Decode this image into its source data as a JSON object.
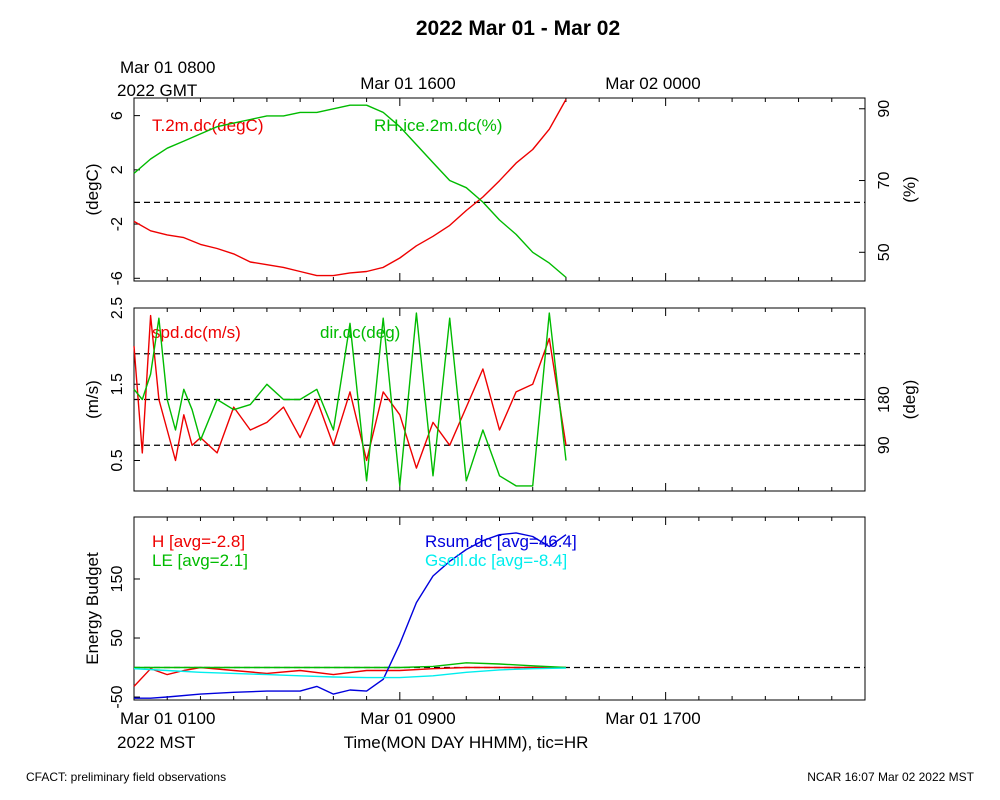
{
  "page": {
    "title": "2022 Mar 01 - Mar 02",
    "top_time_labels": [
      "Mar 01 0800",
      "Mar 01 1600",
      "Mar 02 0000"
    ],
    "top_time_sublabel": "2022 GMT",
    "bottom_time_labels": [
      "Mar 01 0100",
      "Mar 01 0900",
      "Mar 01 1700"
    ],
    "bottom_time_sublabel": "2022 MST",
    "xlabel": "Time(MON DAY HHMM), tic=HR",
    "footer_left": "CFACT: preliminary field observations",
    "footer_right": "NCAR 16:07 Mar 02 2022 MST"
  },
  "colors": {
    "red": "#ee0000",
    "green": "#00bb00",
    "blue": "#0000dd",
    "cyan": "#00eeee",
    "black": "#000000"
  },
  "chart_data": [
    {
      "type": "line",
      "panel": "temperature-humidity",
      "ylabel_left": "(degC)",
      "ylabel_right": "(%)",
      "ylim_left": [
        -6.2,
        7.3
      ],
      "ylim_right": [
        42,
        93
      ],
      "yticks_left": [
        "6",
        "2",
        "-2",
        "-6"
      ],
      "yticks_left_values": [
        6,
        2,
        -2,
        -6
      ],
      "yticks_right": [
        "90",
        "70",
        "50"
      ],
      "yticks_right_values": [
        90,
        70,
        50
      ],
      "xlim_hours": [
        0,
        22
      ],
      "dashed_lines_left": [
        -0.4
      ],
      "series": [
        {
          "name": "T.2m.dc(degC)",
          "color": "red",
          "axis": "left",
          "x": [
            0,
            0.5,
            1,
            1.5,
            2,
            2.5,
            3,
            3.5,
            4,
            4.5,
            5,
            5.5,
            6,
            6.5,
            7,
            7.5,
            8,
            8.5,
            9,
            9.5,
            10,
            10.5,
            11,
            11.5,
            12,
            12.5,
            13
          ],
          "y": [
            -1.8,
            -2.5,
            -2.8,
            -3.0,
            -3.5,
            -3.8,
            -4.2,
            -4.8,
            -5.0,
            -5.2,
            -5.5,
            -5.8,
            -5.8,
            -5.6,
            -5.5,
            -5.2,
            -4.5,
            -3.6,
            -2.9,
            -2.1,
            -1.0,
            0.0,
            1.2,
            2.5,
            3.5,
            5.0,
            7.2
          ]
        },
        {
          "name": "RH.ice.2m.dc(%)",
          "color": "green",
          "axis": "right",
          "x": [
            0,
            0.5,
            1,
            1.5,
            2,
            2.5,
            3,
            3.5,
            4,
            4.5,
            5,
            5.5,
            6,
            6.5,
            7,
            7.5,
            8,
            8.5,
            9,
            9.5,
            10,
            10.5,
            11,
            11.5,
            12,
            12.5,
            13
          ],
          "y": [
            72,
            76,
            79,
            81,
            83,
            85,
            86,
            87,
            88,
            88,
            89,
            89,
            90,
            91,
            91,
            89,
            85,
            80,
            75,
            70,
            68,
            64,
            59,
            55,
            50,
            47,
            43
          ]
        }
      ],
      "legend_labels": [
        "T.2m.dc(degC)",
        "RH.ice.2m.dc(%)"
      ]
    },
    {
      "type": "line",
      "panel": "wind",
      "ylabel_left": "(m/s)",
      "ylabel_right": "(deg)",
      "ylim_left": [
        0.1,
        2.5
      ],
      "ylim_right": [
        0,
        360
      ],
      "yticks_left": [
        "2.5",
        "1.5",
        "0.5"
      ],
      "yticks_left_values": [
        2.5,
        1.5,
        0.5
      ],
      "yticks_right": [
        "180",
        "90"
      ],
      "yticks_right_values": [
        180,
        90
      ],
      "xlim_hours": [
        0,
        22
      ],
      "dashed_lines_right": [
        90,
        180,
        270
      ],
      "series": [
        {
          "name": "spd.dc(m/s)",
          "color": "red",
          "axis": "left",
          "x": [
            0,
            0.25,
            0.5,
            0.75,
            1,
            1.25,
            1.5,
            1.75,
            2,
            2.5,
            3,
            3.5,
            4,
            4.5,
            5,
            5.5,
            6,
            6.5,
            7,
            7.5,
            8,
            8.5,
            9,
            9.5,
            10,
            10.5,
            11,
            11.5,
            12,
            12.5,
            13
          ],
          "y": [
            2.0,
            0.6,
            2.4,
            1.3,
            0.9,
            0.5,
            1.1,
            0.7,
            0.8,
            0.6,
            1.2,
            0.9,
            1.0,
            1.2,
            0.8,
            1.3,
            0.7,
            1.4,
            0.5,
            1.4,
            1.1,
            0.4,
            1.0,
            0.7,
            1.2,
            1.7,
            0.9,
            1.4,
            1.5,
            2.1,
            0.7
          ]
        },
        {
          "name": "dir.dc(deg)",
          "color": "green",
          "axis": "right",
          "x": [
            0,
            0.25,
            0.5,
            0.75,
            1,
            1.25,
            1.5,
            1.75,
            2,
            2.5,
            3,
            3.5,
            4,
            4.5,
            5,
            5.5,
            6,
            6.5,
            7,
            7.5,
            8,
            8.5,
            9,
            9.5,
            10,
            10.5,
            11,
            11.5,
            12,
            12.5,
            13
          ],
          "y": [
            200,
            180,
            230,
            340,
            180,
            120,
            200,
            160,
            100,
            180,
            160,
            170,
            210,
            180,
            180,
            200,
            120,
            330,
            20,
            340,
            10,
            350,
            30,
            340,
            20,
            120,
            30,
            10,
            10,
            350,
            60
          ]
        }
      ],
      "legend_labels": [
        "spd.dc(m/s)",
        "dir.dc(deg)"
      ]
    },
    {
      "type": "line",
      "panel": "energy-budget",
      "ylabel_left": "Energy Budget",
      "ylim_left": [
        -55,
        255
      ],
      "yticks_left": [
        "150",
        "50",
        "-50"
      ],
      "yticks_left_values": [
        150,
        50,
        -50
      ],
      "xlim_hours": [
        0,
        22
      ],
      "dashed_lines_left": [
        0
      ],
      "series": [
        {
          "name": "H [avg=-2.8]",
          "color": "red",
          "x": [
            0,
            0.5,
            1,
            1.5,
            2,
            3,
            4,
            5,
            6,
            7,
            8,
            9,
            10,
            11,
            12,
            13
          ],
          "y": [
            -32,
            -2,
            -12,
            -5,
            0,
            -5,
            -10,
            -5,
            -12,
            -5,
            -5,
            -2,
            0,
            0,
            0,
            0
          ]
        },
        {
          "name": "LE [avg=2.1]",
          "color": "green",
          "x": [
            0,
            1,
            2,
            3,
            4,
            5,
            6,
            7,
            8,
            9,
            10,
            11,
            12,
            13
          ],
          "y": [
            0,
            0,
            0,
            0,
            0,
            0,
            0,
            0,
            0,
            2,
            8,
            6,
            3,
            0
          ]
        },
        {
          "name": "Rsum.dc [avg=46.4]",
          "color": "blue",
          "x": [
            0,
            0.5,
            1,
            2,
            3,
            4,
            5,
            5.5,
            6,
            6.5,
            7,
            7.5,
            8,
            8.5,
            9,
            9.5,
            10,
            10.5,
            11,
            11.5,
            12,
            12.5,
            13
          ],
          "y": [
            -52,
            -52,
            -50,
            -45,
            -42,
            -40,
            -40,
            -32,
            -45,
            -38,
            -40,
            -20,
            40,
            110,
            155,
            180,
            200,
            215,
            225,
            228,
            222,
            205,
            225
          ]
        },
        {
          "name": "Gsoil.dc [avg=-8.4]",
          "color": "cyan",
          "x": [
            0,
            1,
            2,
            3,
            4,
            5,
            6,
            7,
            8,
            9,
            10,
            11,
            12,
            13
          ],
          "y": [
            -2,
            -5,
            -8,
            -10,
            -12,
            -14,
            -16,
            -17,
            -17,
            -14,
            -8,
            -4,
            -2,
            -1
          ]
        }
      ],
      "legend_labels": [
        "H [avg=-2.8]",
        "LE [avg=2.1]",
        "Rsum.dc [avg=46.4]",
        "Gsoil.dc [avg=-8.4]"
      ]
    }
  ]
}
